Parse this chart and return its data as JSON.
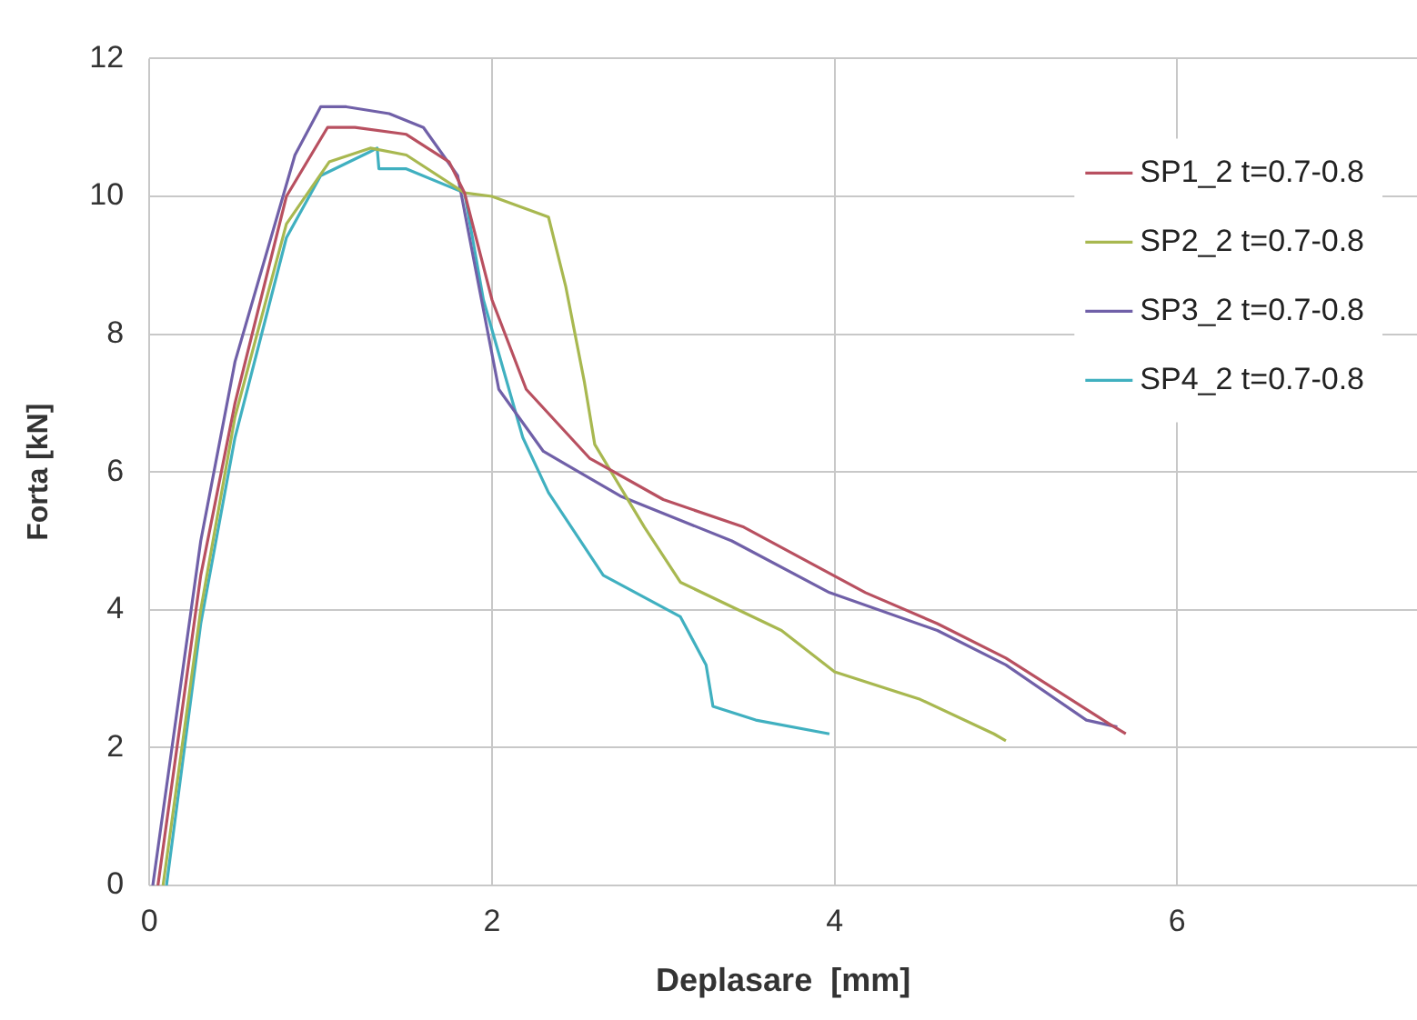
{
  "chart_data": {
    "type": "line",
    "xlabel": "Deplasare  [mm]",
    "ylabel": "Forta [kN]",
    "xlim": [
      0,
      7.4
    ],
    "xticks": [
      0,
      2,
      4,
      6
    ],
    "ylim": [
      0,
      12
    ],
    "yticks": [
      0,
      2,
      4,
      6,
      8,
      10,
      12
    ],
    "grid": true,
    "legend": "top right",
    "marker": "none",
    "line_style": "solid",
    "series": [
      {
        "name": "SP1_2 t=0.7-0.8",
        "color": "#b85060",
        "x": [
          0.05,
          0.3,
          0.5,
          0.8,
          1.04,
          1.2,
          1.5,
          1.75,
          1.84,
          2.0,
          2.2,
          2.57,
          3.0,
          3.47,
          4.18,
          4.6,
          5.0,
          5.6,
          5.7
        ],
        "values": [
          0,
          4.5,
          7,
          10,
          11.0,
          11.0,
          10.9,
          10.5,
          10.05,
          8.5,
          7.2,
          6.2,
          5.6,
          5.2,
          4.25,
          3.8,
          3.3,
          2.35,
          2.2
        ]
      },
      {
        "name": "SP2_2 t=0.7-0.8",
        "color": "#a8b850",
        "x": [
          0.08,
          0.3,
          0.5,
          0.8,
          1.05,
          1.29,
          1.5,
          1.84,
          2.0,
          2.33,
          2.43,
          2.54,
          2.6,
          2.89,
          3.1,
          3.69,
          4.0,
          4.5,
          4.93,
          5.0
        ],
        "values": [
          0,
          4,
          6.8,
          9.6,
          10.5,
          10.7,
          10.6,
          10.05,
          10.0,
          9.7,
          8.7,
          7.3,
          6.4,
          5.2,
          4.4,
          3.7,
          3.1,
          2.7,
          2.2,
          2.1
        ]
      },
      {
        "name": "SP3_2 t=0.7-0.8",
        "color": "#7060a8",
        "x": [
          0.02,
          0.3,
          0.5,
          0.85,
          1.0,
          1.15,
          1.4,
          1.6,
          1.8,
          1.9,
          2.04,
          2.3,
          2.75,
          3.4,
          3.97,
          4.6,
          5.0,
          5.47,
          5.65
        ],
        "values": [
          0,
          5,
          7.6,
          10.6,
          11.3,
          11.3,
          11.2,
          11.0,
          10.3,
          9.0,
          7.2,
          6.3,
          5.65,
          5.0,
          4.25,
          3.7,
          3.2,
          2.4,
          2.3
        ]
      },
      {
        "name": "SP4_2 t=0.7-0.8",
        "color": "#40b0c0",
        "x": [
          0.1,
          0.3,
          0.5,
          0.8,
          1.0,
          1.29,
          1.33,
          1.34,
          1.5,
          1.84,
          1.95,
          2.18,
          2.33,
          2.65,
          3.1,
          3.25,
          3.29,
          3.54,
          3.97
        ],
        "values": [
          0,
          3.8,
          6.5,
          9.4,
          10.3,
          10.65,
          10.7,
          10.4,
          10.4,
          10.05,
          8.5,
          6.5,
          5.7,
          4.5,
          3.9,
          3.2,
          2.6,
          2.4,
          2.2
        ]
      }
    ]
  }
}
